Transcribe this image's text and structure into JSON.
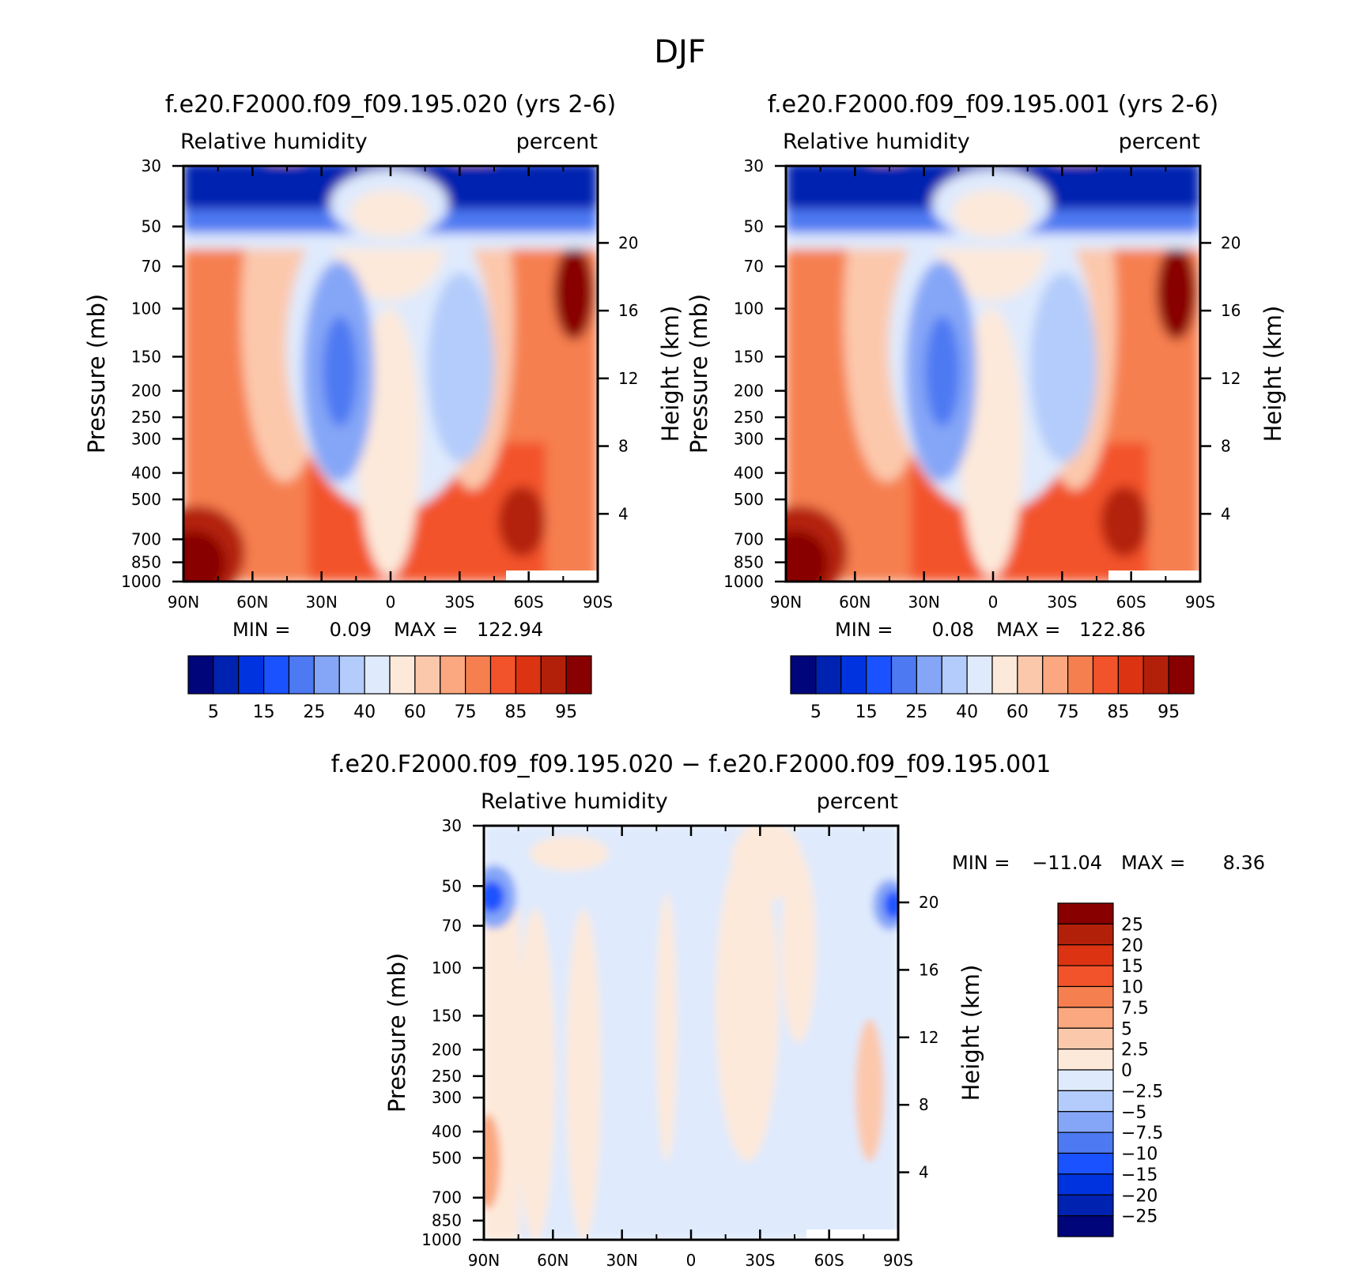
{
  "figure": {
    "main_title": "DJF",
    "min_label": "MIN =",
    "max_label": "MAX ="
  },
  "chart_data": [
    {
      "type": "heatmap",
      "panel": "top-left",
      "title": "f.e20.F2000.f09_f09.195.020 (yrs 2-6)",
      "field_label": "Relative humidity",
      "units_label": "percent",
      "ylabel": "Pressure (mb)",
      "ylabel_right": "Height (km)",
      "x_ticks": [
        "90N",
        "60N",
        "30N",
        "0",
        "30S",
        "60S",
        "90S"
      ],
      "x_range": [
        90,
        -90
      ],
      "y_ticks": [
        30,
        50,
        70,
        100,
        150,
        200,
        250,
        300,
        400,
        500,
        700,
        850,
        1000
      ],
      "y_range": [
        30,
        1000
      ],
      "y_scale": "log, reversed",
      "right_ticks": [
        20,
        16,
        12,
        8,
        4
      ],
      "min": "0.09",
      "max": "122.94",
      "colorbar": {
        "orientation": "horizontal",
        "labels": [
          "5",
          "15",
          "25",
          "40",
          "60",
          "75",
          "85",
          "95"
        ],
        "colors": [
          "#00057a",
          "#0022b0",
          "#0033e0",
          "#1a52ff",
          "#4d79f2",
          "#85a6f7",
          "#b3ccfb",
          "#dfeafd",
          "#fde9da",
          "#fcc8ac",
          "#fba77f",
          "#f67f50",
          "#f3532b",
          "#dc3312",
          "#b3200a",
          "#880000"
        ]
      }
    },
    {
      "type": "heatmap",
      "panel": "top-right",
      "title": "f.e20.F2000.f09_f09.195.001 (yrs 2-6)",
      "field_label": "Relative humidity",
      "units_label": "percent",
      "ylabel": "Pressure (mb)",
      "ylabel_right": "Height (km)",
      "x_ticks": [
        "90N",
        "60N",
        "30N",
        "0",
        "30S",
        "60S",
        "90S"
      ],
      "x_range": [
        90,
        -90
      ],
      "y_ticks": [
        30,
        50,
        70,
        100,
        150,
        200,
        250,
        300,
        400,
        500,
        700,
        850,
        1000
      ],
      "y_range": [
        30,
        1000
      ],
      "y_scale": "log, reversed",
      "right_ticks": [
        20,
        16,
        12,
        8,
        4
      ],
      "min": "0.08",
      "max": "122.86",
      "colorbar": {
        "orientation": "horizontal",
        "labels": [
          "5",
          "15",
          "25",
          "40",
          "60",
          "75",
          "85",
          "95"
        ],
        "colors": [
          "#00057a",
          "#0022b0",
          "#0033e0",
          "#1a52ff",
          "#4d79f2",
          "#85a6f7",
          "#b3ccfb",
          "#dfeafd",
          "#fde9da",
          "#fcc8ac",
          "#fba77f",
          "#f67f50",
          "#f3532b",
          "#dc3312",
          "#b3200a",
          "#880000"
        ]
      }
    },
    {
      "type": "heatmap",
      "panel": "bottom",
      "title": "f.e20.F2000.f09_f09.195.020 − f.e20.F2000.f09_f09.195.001",
      "field_label": "Relative humidity",
      "units_label": "percent",
      "ylabel": "Pressure (mb)",
      "ylabel_right": "Height (km)",
      "x_ticks": [
        "90N",
        "60N",
        "30N",
        "0",
        "30S",
        "60S",
        "90S"
      ],
      "x_range": [
        90,
        -90
      ],
      "y_ticks": [
        30,
        50,
        70,
        100,
        150,
        200,
        250,
        300,
        400,
        500,
        700,
        850,
        1000
      ],
      "y_range": [
        30,
        1000
      ],
      "y_scale": "log, reversed",
      "right_ticks": [
        20,
        16,
        12,
        8,
        4
      ],
      "min": "−11.04",
      "max": "8.36",
      "colorbar": {
        "orientation": "vertical",
        "labels": [
          "25",
          "20",
          "15",
          "10",
          "7.5",
          "5",
          "2.5",
          "0",
          "−2.5",
          "−5",
          "−7.5",
          "−10",
          "−15",
          "−20",
          "−25"
        ],
        "colors": [
          "#880000",
          "#b3200a",
          "#dc3312",
          "#f3532b",
          "#f67f50",
          "#fba77f",
          "#fcc8ac",
          "#fde9da",
          "#dfeafd",
          "#b3ccfb",
          "#85a6f7",
          "#4d79f2",
          "#1a52ff",
          "#0033e0",
          "#0022b0",
          "#00057a"
        ]
      }
    }
  ]
}
